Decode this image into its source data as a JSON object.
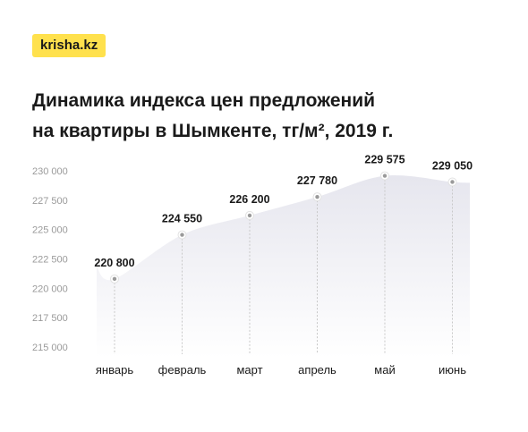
{
  "brand": {
    "logo_text": "krisha.kz",
    "logo_color": "#ffe14d"
  },
  "header": {
    "title_line1": "Динамика индекса цен предложений",
    "title_line2": "на квартиры в Шымкенте, тг/м², 2019 г."
  },
  "chart_data": {
    "type": "area",
    "categories": [
      "январь",
      "февраль",
      "март",
      "апрель",
      "май",
      "июнь"
    ],
    "values": [
      220800,
      224550,
      226200,
      227780,
      229575,
      229050
    ],
    "data_labels": [
      "220 800",
      "224 550",
      "226 200",
      "227 780",
      "229 575",
      "229 050"
    ],
    "yticks": [
      230000,
      227500,
      225000,
      222500,
      220000,
      217500,
      215000
    ],
    "ytick_labels": [
      "230 000",
      "227 500",
      "225 000",
      "222 500",
      "220 000",
      "217 500",
      "215 000"
    ],
    "ylim": [
      215000,
      230000
    ],
    "title": "Динамика индекса цен предложений на квартиры в Шымкенте, тг/м², 2019 г.",
    "xlabel": "",
    "ylabel": "",
    "grid": false,
    "legend": "none",
    "colors": {
      "area_top": "#e6e6ee",
      "area_bottom": "#ffffff",
      "marker": "#9a9a9a",
      "dropline": "#c8c8c8"
    }
  }
}
